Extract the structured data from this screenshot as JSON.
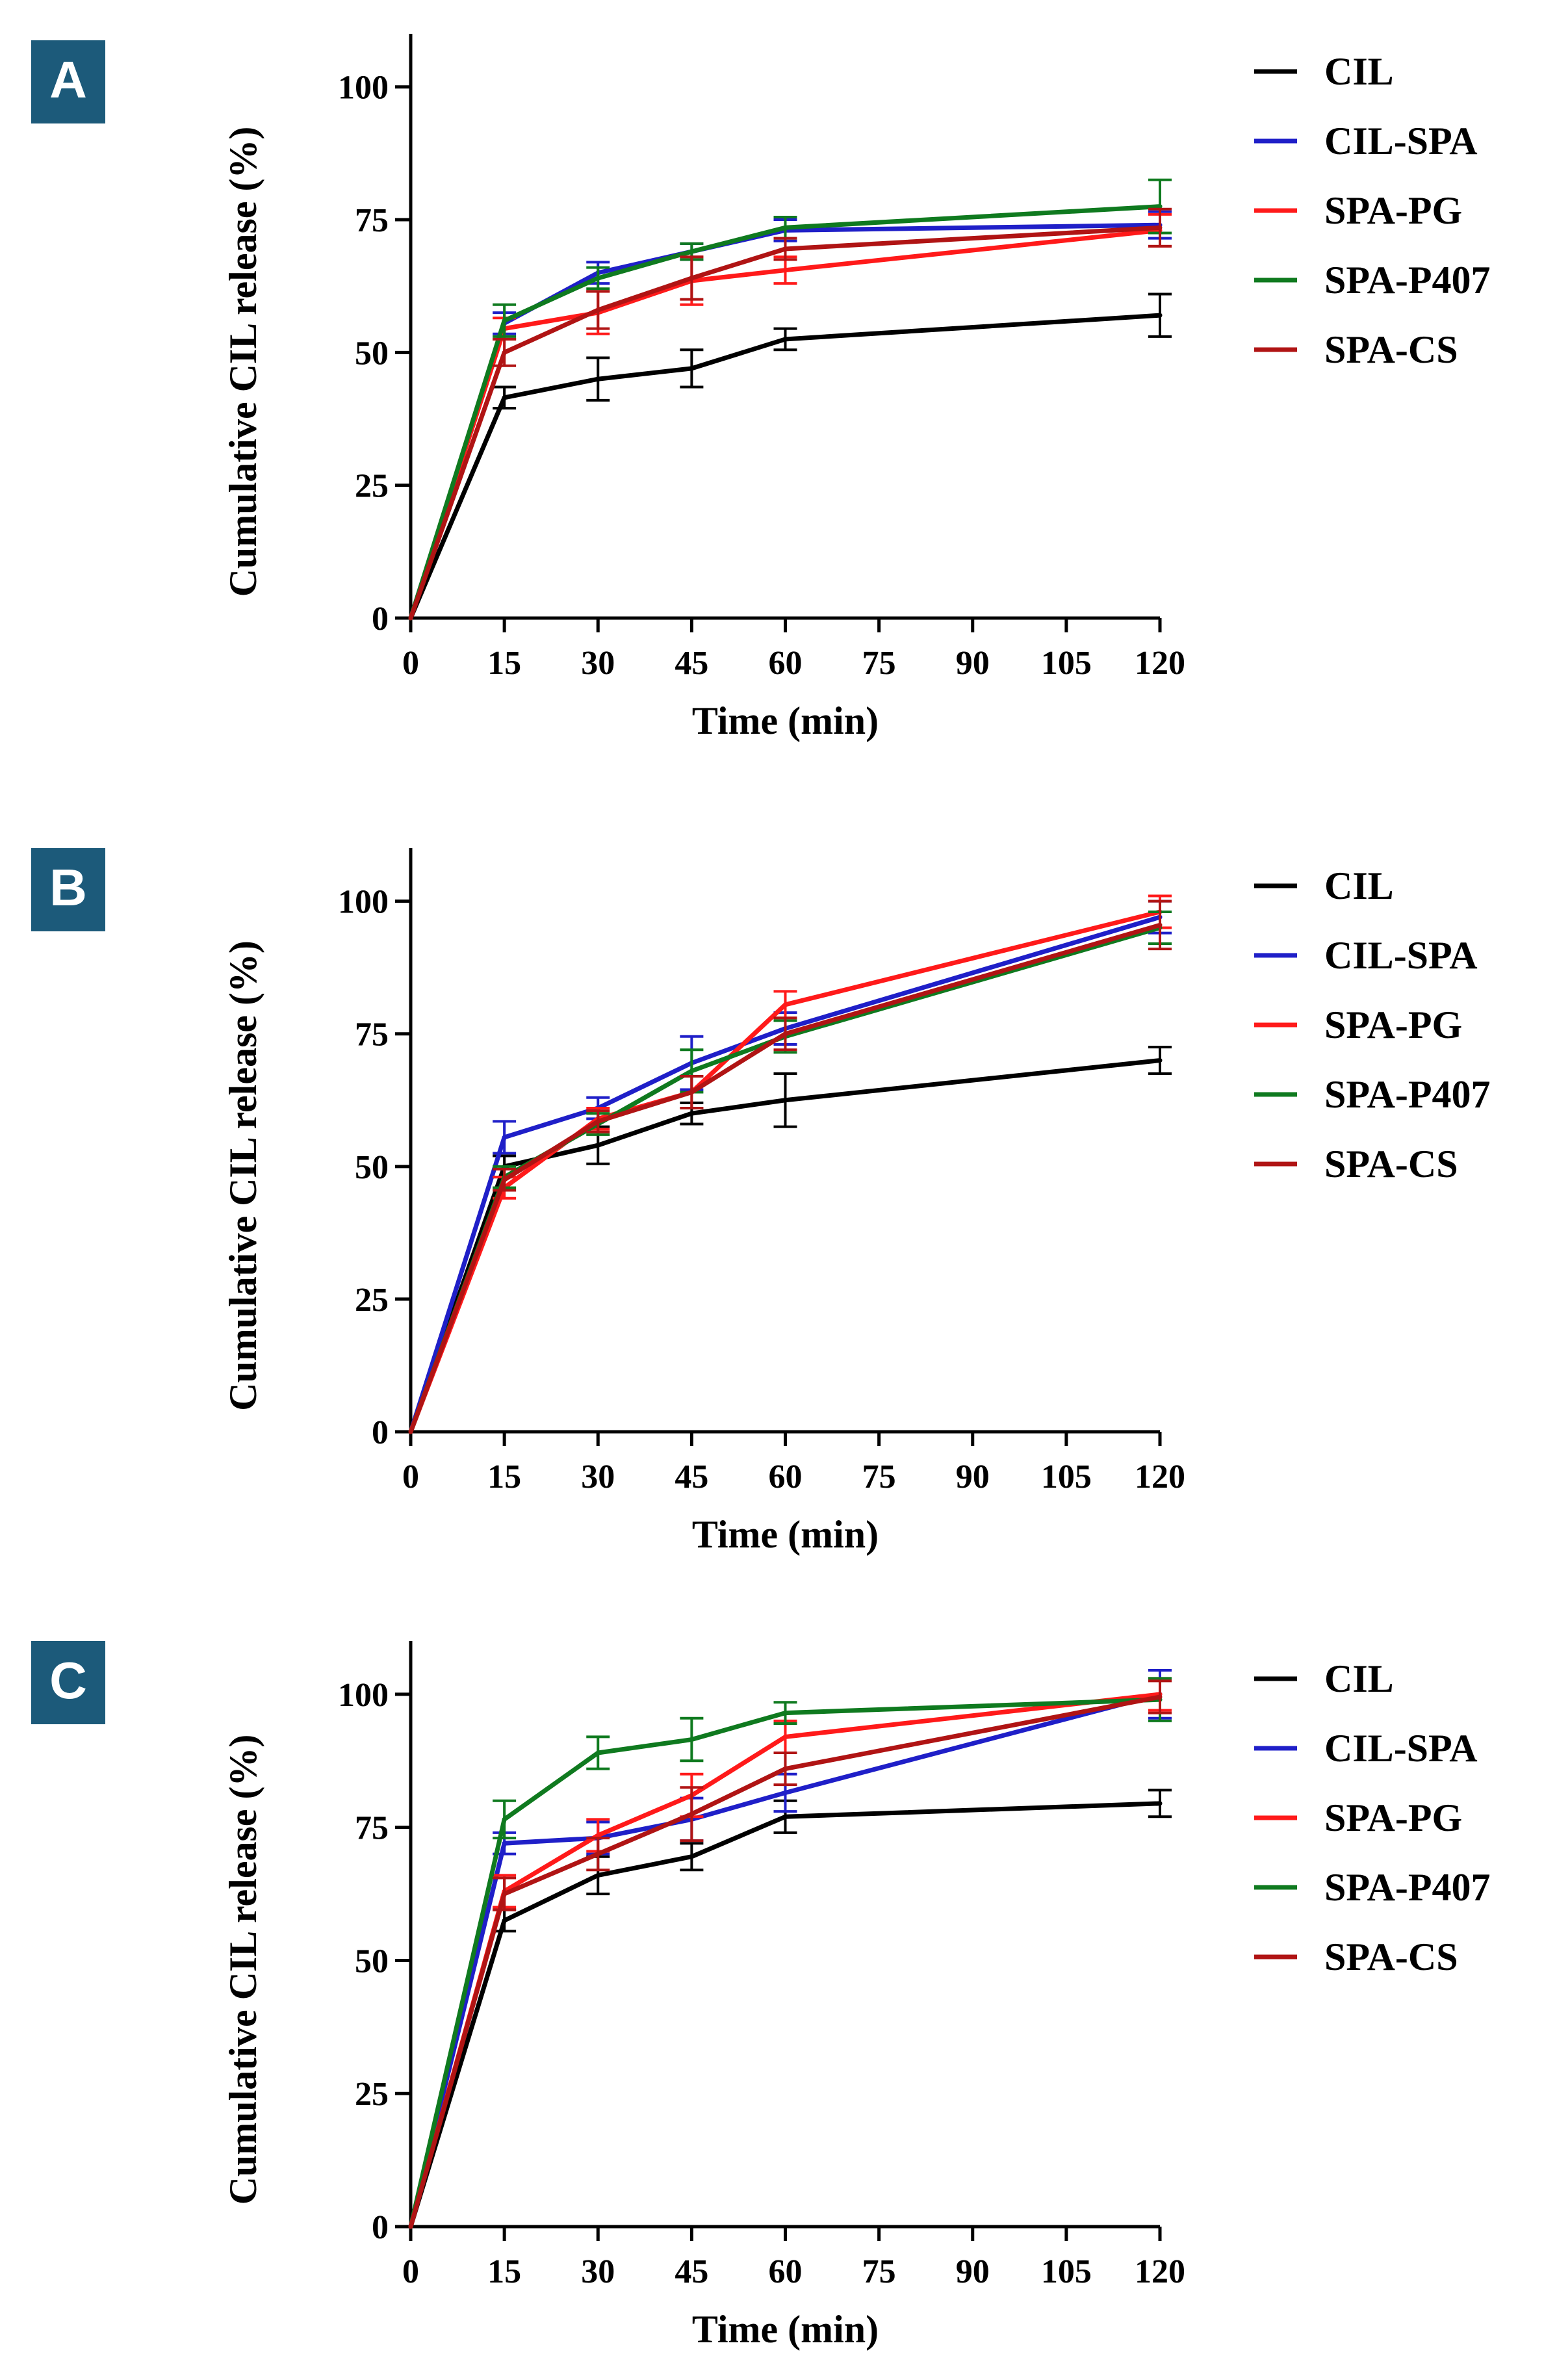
{
  "chart_data": [
    {
      "type": "line",
      "panel_label": "A",
      "xlabel": "Time (min)",
      "ylabel": "Cumulative CIL release (%)",
      "xlim": [
        0,
        120
      ],
      "ylim": [
        0,
        110
      ],
      "xticks": [
        0,
        15,
        30,
        45,
        60,
        75,
        90,
        105,
        120
      ],
      "yticks": [
        0,
        25,
        50,
        75,
        100
      ],
      "x": [
        0,
        15,
        30,
        45,
        60,
        120
      ],
      "legend_position": "top-right",
      "series": [
        {
          "name": "CIL",
          "color": "#000000",
          "values": [
            0,
            41.5,
            45,
            47,
            52.5,
            57
          ],
          "errors": [
            0,
            2,
            4,
            3.5,
            2,
            4
          ]
        },
        {
          "name": "CIL-SPA",
          "color": "#1f1fc8",
          "values": [
            0,
            55.5,
            65,
            69,
            73,
            74
          ],
          "errors": [
            0,
            2,
            2,
            1.5,
            2,
            2.5
          ]
        },
        {
          "name": "SPA-PG",
          "color": "#ff1a1a",
          "values": [
            0,
            54.5,
            57.5,
            63.5,
            65.5,
            73
          ],
          "errors": [
            0,
            2,
            4,
            4.5,
            2.5,
            3
          ]
        },
        {
          "name": "SPA-P407",
          "color": "#0f7a1f",
          "values": [
            0,
            56,
            64,
            69,
            73.5,
            77.5
          ],
          "errors": [
            0,
            3,
            2,
            1.5,
            2,
            5
          ]
        },
        {
          "name": "SPA-CS",
          "color": "#b01414",
          "values": [
            0,
            50,
            58,
            64,
            69.5,
            73.5
          ],
          "errors": [
            0,
            2.5,
            3.5,
            4,
            2,
            3.5
          ]
        }
      ]
    },
    {
      "type": "line",
      "panel_label": "B",
      "xlabel": "Time (min)",
      "ylabel": "Cumulative CIL release (%)",
      "xlim": [
        0,
        120
      ],
      "ylim": [
        0,
        110
      ],
      "xticks": [
        0,
        15,
        30,
        45,
        60,
        75,
        90,
        105,
        120
      ],
      "yticks": [
        0,
        25,
        50,
        75,
        100
      ],
      "x": [
        0,
        15,
        30,
        45,
        60,
        120
      ],
      "legend_position": "top-right",
      "series": [
        {
          "name": "CIL",
          "color": "#000000",
          "values": [
            0,
            50,
            54,
            60,
            62.5,
            70
          ],
          "errors": [
            0,
            2,
            3.5,
            2,
            5,
            2.5
          ]
        },
        {
          "name": "CIL-SPA",
          "color": "#1f1fc8",
          "values": [
            0,
            55.5,
            61,
            69.5,
            76,
            97
          ],
          "errors": [
            0,
            3,
            2,
            5,
            3,
            3
          ]
        },
        {
          "name": "SPA-PG",
          "color": "#ff1a1a",
          "values": [
            0,
            46,
            59,
            64,
            80.5,
            98
          ],
          "errors": [
            0,
            2,
            2,
            3,
            2.5,
            3
          ]
        },
        {
          "name": "SPA-P407",
          "color": "#0f7a1f",
          "values": [
            0,
            48,
            58,
            68,
            74.5,
            95
          ],
          "errors": [
            0,
            2,
            2,
            4,
            3,
            3
          ]
        },
        {
          "name": "SPA-CS",
          "color": "#b01414",
          "values": [
            0,
            47.5,
            58.5,
            64,
            75,
            95.5
          ],
          "errors": [
            0,
            2,
            2,
            3,
            3,
            4.5
          ]
        }
      ]
    },
    {
      "type": "line",
      "panel_label": "C",
      "xlabel": "Time (min)",
      "ylabel": "Cumulative CIL release (%)",
      "xlim": [
        0,
        120
      ],
      "ylim": [
        0,
        110
      ],
      "xticks": [
        0,
        15,
        30,
        45,
        60,
        75,
        90,
        105,
        120
      ],
      "yticks": [
        0,
        25,
        50,
        75,
        100
      ],
      "x": [
        0,
        15,
        30,
        45,
        60,
        120
      ],
      "legend_position": "top-right",
      "series": [
        {
          "name": "CIL",
          "color": "#000000",
          "values": [
            0,
            57.5,
            66,
            69.5,
            77,
            79.5
          ],
          "errors": [
            0,
            2,
            3.5,
            2.5,
            3,
            2.5
          ]
        },
        {
          "name": "CIL-SPA",
          "color": "#1f1fc8",
          "values": [
            0,
            72,
            73,
            76.5,
            81.5,
            100
          ],
          "errors": [
            0,
            2,
            3,
            4,
            3.5,
            4.5
          ]
        },
        {
          "name": "SPA-PG",
          "color": "#ff1a1a",
          "values": [
            0,
            63,
            73.5,
            81,
            92,
            100
          ],
          "errors": [
            0,
            3,
            3,
            4,
            3,
            3
          ]
        },
        {
          "name": "SPA-P407",
          "color": "#0f7a1f",
          "values": [
            0,
            76.5,
            89,
            91.5,
            96.5,
            99
          ],
          "errors": [
            0,
            3.5,
            3,
            4,
            2,
            4
          ]
        },
        {
          "name": "SPA-CS",
          "color": "#b01414",
          "values": [
            0,
            62.5,
            70,
            77.5,
            86,
            99.5
          ],
          "errors": [
            0,
            3,
            3,
            5,
            3,
            3
          ]
        }
      ]
    }
  ]
}
